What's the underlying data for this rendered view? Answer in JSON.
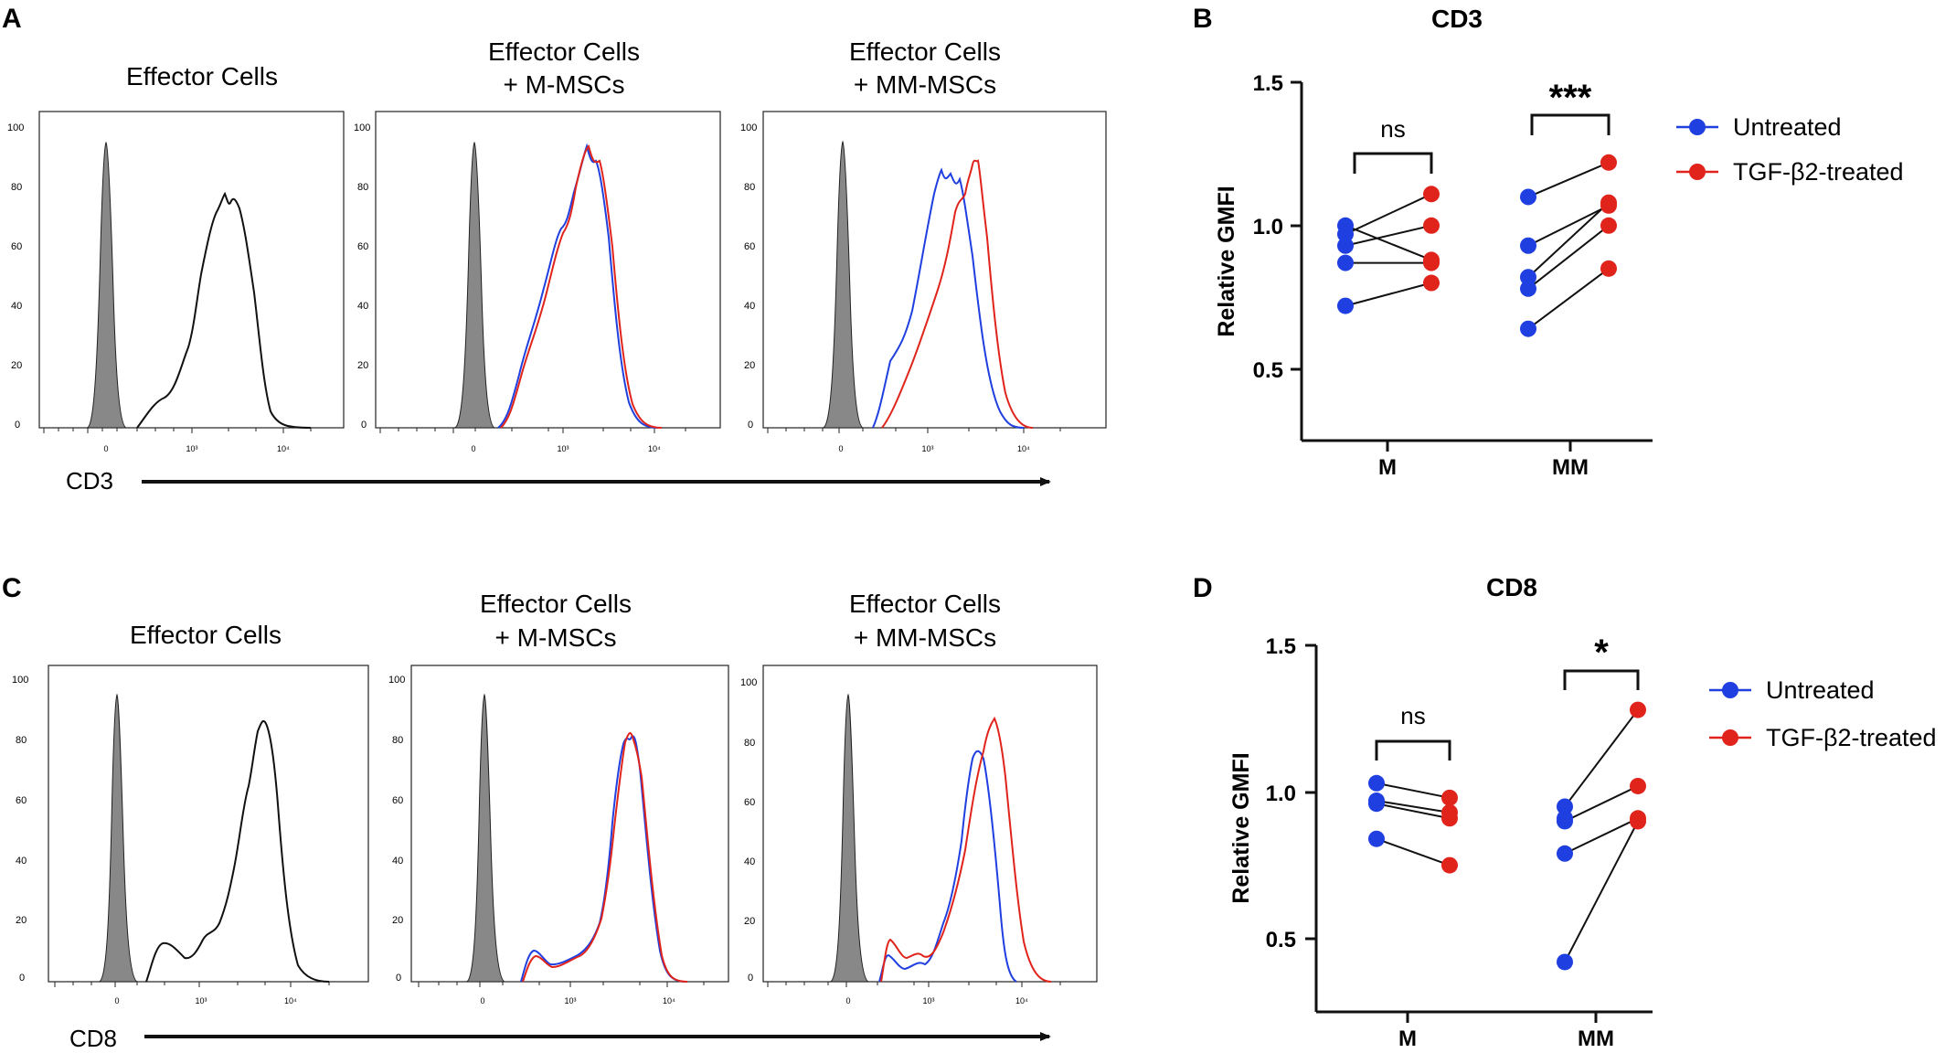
{
  "panels": {
    "A": "A",
    "B": "B",
    "C": "C",
    "D": "D"
  },
  "colors": {
    "untreated": "#1f3fe0",
    "tgf": "#e0241b",
    "black": "#111111",
    "gray_fill": "#888888"
  },
  "histograms": {
    "cd3": {
      "axis_label": "CD3",
      "titles": [
        {
          "line1": "Effector Cells",
          "line2": ""
        },
        {
          "line1": "Effector Cells",
          "line2": "+ M-MSCs"
        },
        {
          "line1": "Effector Cells",
          "line2": "+ MM-MSCs"
        }
      ],
      "y_ticks": [
        "100",
        "80",
        "60",
        "40",
        "20",
        "0"
      ],
      "x_ticks": [
        "0",
        "10³",
        "10⁴"
      ]
    },
    "cd8": {
      "axis_label": "CD8",
      "titles": [
        {
          "line1": "Effector Cells",
          "line2": ""
        },
        {
          "line1": "Effector Cells",
          "line2": "+ M-MSCs"
        },
        {
          "line1": "Effector Cells",
          "line2": "+ MM-MSCs"
        }
      ],
      "y_ticks": [
        "100",
        "80",
        "60",
        "40",
        "20",
        "0"
      ],
      "x_ticks": [
        "0",
        "10³",
        "10⁴"
      ]
    }
  },
  "legend": {
    "untreated": "Untreated",
    "tgf": "TGF-β2-treated"
  },
  "chart_data": [
    {
      "id": "B",
      "type": "scatter",
      "title": "CD3",
      "xlabel": "",
      "ylabel": "Relative GMFI",
      "categories": [
        "M",
        "MM"
      ],
      "ylim": [
        0.25,
        1.5
      ],
      "y_ticks": [
        "1.5",
        "1.0",
        "0.5"
      ],
      "series": [
        {
          "name": "Untreated",
          "values": {
            "M": [
              0.72,
              0.87,
              0.93,
              0.97,
              1.0
            ],
            "MM": [
              0.64,
              0.78,
              0.82,
              0.93,
              1.1
            ]
          }
        },
        {
          "name": "TGF-β2-treated",
          "values": {
            "M": [
              0.8,
              0.87,
              0.88,
              1.0,
              1.11
            ],
            "MM": [
              0.85,
              1.0,
              1.07,
              1.08,
              1.22
            ]
          }
        }
      ],
      "pairs": {
        "M": [
          [
            0.72,
            0.8
          ],
          [
            0.87,
            0.87
          ],
          [
            0.93,
            1.0
          ],
          [
            0.97,
            1.11
          ],
          [
            1.0,
            0.88
          ]
        ],
        "MM": [
          [
            0.64,
            0.85
          ],
          [
            0.78,
            1.0
          ],
          [
            0.82,
            1.08
          ],
          [
            0.93,
            1.07
          ],
          [
            1.1,
            1.22
          ]
        ]
      },
      "significance": {
        "M": "ns",
        "MM": "***"
      }
    },
    {
      "id": "D",
      "type": "scatter",
      "title": "CD8",
      "xlabel": "",
      "ylabel": "Relative GMFI",
      "categories": [
        "M",
        "MM"
      ],
      "ylim": [
        0.25,
        1.5
      ],
      "y_ticks": [
        "1.5",
        "1.0",
        "0.5"
      ],
      "series": [
        {
          "name": "Untreated",
          "values": {
            "M": [
              0.84,
              0.96,
              0.97,
              1.03
            ],
            "MM": [
              0.42,
              0.79,
              0.9,
              0.91,
              0.95
            ]
          }
        },
        {
          "name": "TGF-β2-treated",
          "values": {
            "M": [
              0.75,
              0.91,
              0.93,
              0.98
            ],
            "MM": [
              0.9,
              0.91,
              1.02,
              1.28
            ]
          }
        }
      ],
      "pairs": {
        "M": [
          [
            0.84,
            0.75
          ],
          [
            0.96,
            0.91
          ],
          [
            0.97,
            0.93
          ],
          [
            1.03,
            0.98
          ]
        ],
        "MM": [
          [
            0.42,
            0.9
          ],
          [
            0.79,
            0.91
          ],
          [
            0.9,
            1.02
          ],
          [
            0.95,
            1.28
          ]
        ]
      },
      "significance": {
        "M": "ns",
        "MM": "*"
      }
    }
  ]
}
